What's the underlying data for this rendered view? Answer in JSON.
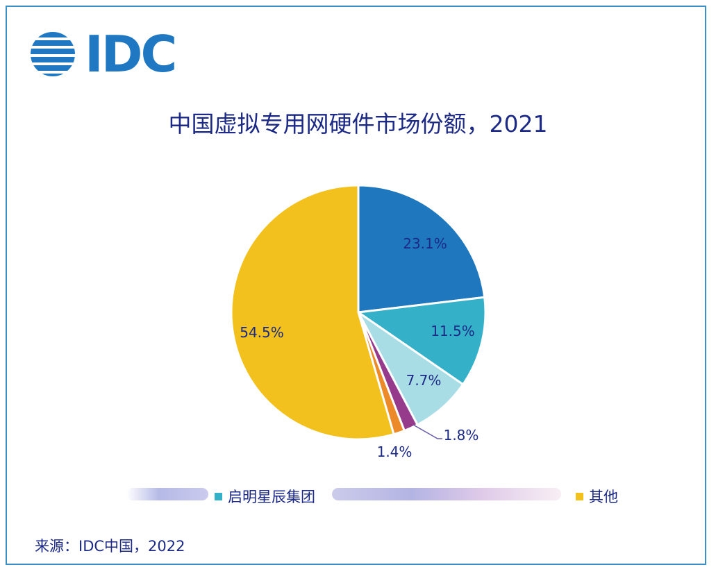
{
  "logo": {
    "text": "IDC"
  },
  "chart_data": {
    "type": "pie",
    "title": "中国虚拟专用网硬件市场份额，2021",
    "values": [
      23.1,
      11.5,
      7.7,
      1.8,
      1.4,
      54.5
    ],
    "labels": [
      "23.1%",
      "11.5%",
      "7.7%",
      "1.8%",
      "1.4%",
      "54.5%"
    ],
    "colors": [
      "#1f78bd",
      "#35b0c9",
      "#a9dde5",
      "#963a8c",
      "#ec8a2a",
      "#f2c11d"
    ],
    "legend": [
      {
        "name": "启明星辰集团",
        "color": "#35b0c9"
      },
      {
        "name": "其他",
        "color": "#f2c11d"
      }
    ],
    "legend_position": "bottom"
  },
  "source": "来源：IDC中国，2022"
}
